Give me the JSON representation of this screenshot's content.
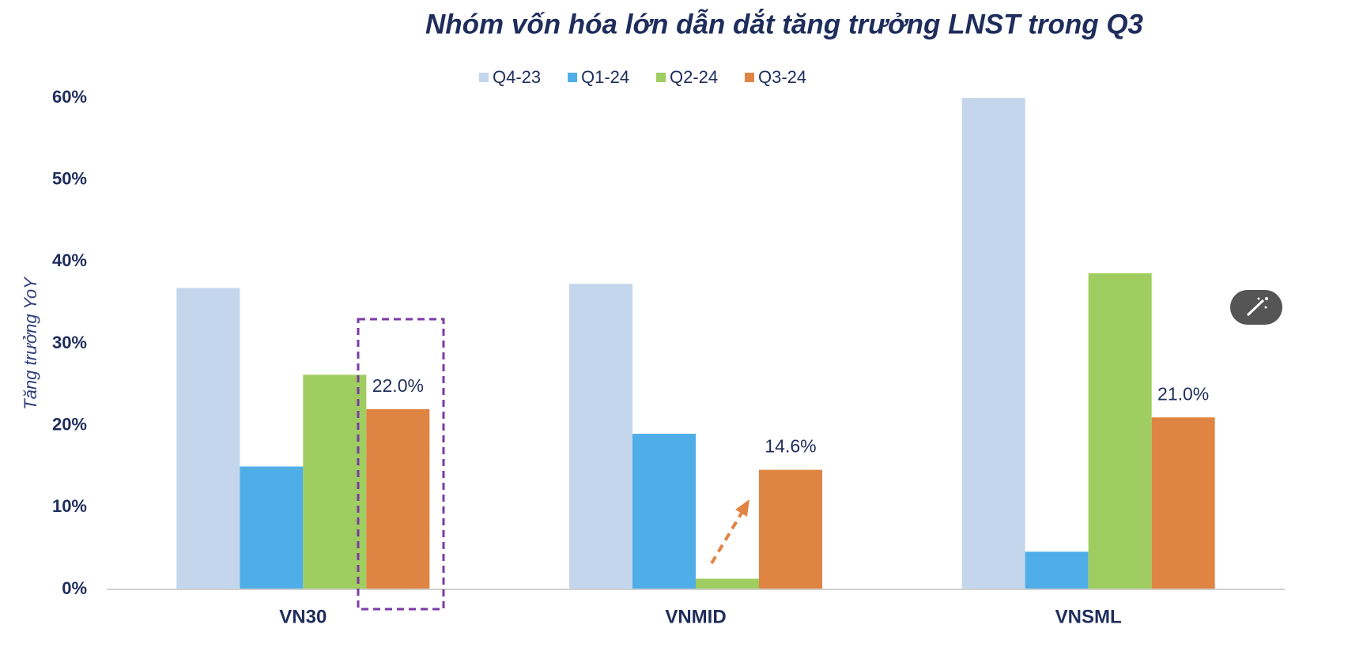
{
  "chart_data": {
    "type": "bar",
    "title": "Nhóm vốn hóa lớn dẫn dắt tăng trưởng LNST trong Q3",
    "y_label": "Tăng trưởng YoY",
    "categories": [
      "VN30",
      "VNMID",
      "VNSML"
    ],
    "series": [
      {
        "name": "Q4-23",
        "color": "#c3d6ec",
        "values": [
          36.8,
          37.3,
          60
        ]
      },
      {
        "name": "Q1-24",
        "color": "#4faee8",
        "values": [
          15.0,
          19.0,
          4.6
        ]
      },
      {
        "name": "Q2-24",
        "color": "#9fcd5f",
        "values": [
          26.2,
          1.3,
          38.6
        ]
      },
      {
        "name": "Q3-24",
        "color": "#df8443",
        "values": [
          22.0,
          14.6,
          21.0
        ],
        "value_labels": [
          "22.0%",
          "14.6%",
          "21.0%"
        ]
      }
    ],
    "ylim": [
      0,
      60
    ],
    "yticks": [
      {
        "value": 0,
        "label": "0%"
      },
      {
        "value": 10,
        "label": "10%"
      },
      {
        "value": 20,
        "label": "20%"
      },
      {
        "value": 30,
        "label": "30%"
      },
      {
        "value": 40,
        "label": "40%"
      },
      {
        "value": 50,
        "label": "50%"
      },
      {
        "value": 60,
        "label": "60%"
      }
    ],
    "legend": "top",
    "grid": false
  }
}
